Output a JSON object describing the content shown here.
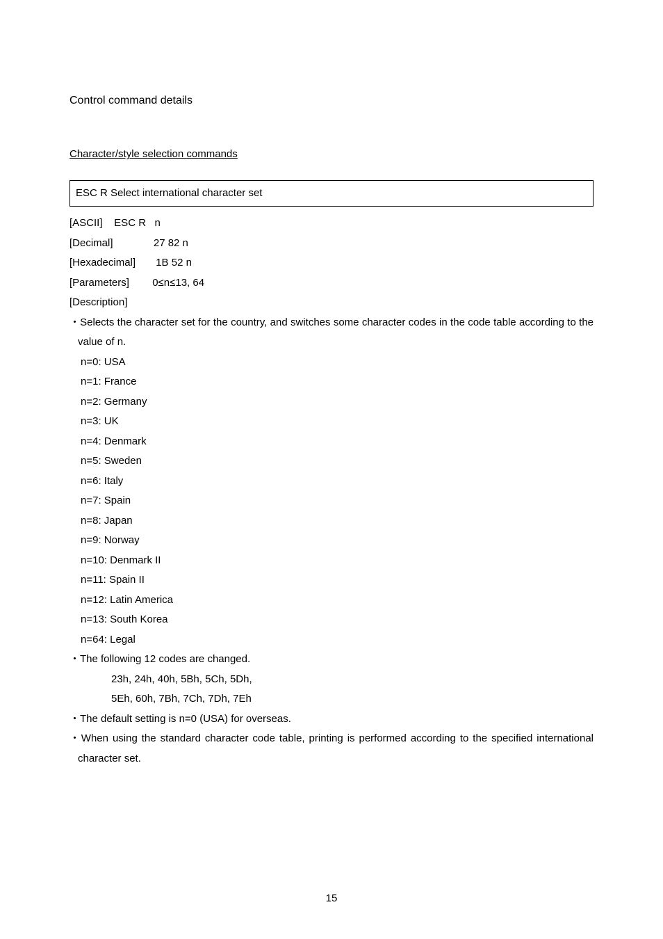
{
  "heading": "Control command details",
  "subheading": "Character/style selection commands",
  "command_box": "ESC R   Select international character set",
  "params": {
    "ascii": "[ASCII]    ESC R   n",
    "decimal": "[Decimal]              27 82 n",
    "hex": "[Hexadecimal]       1B 52 n",
    "paramsl": "[Parameters]        0≤n≤13, 64",
    "desc": "[Description]"
  },
  "bullet1": "・Selects the character set for the country, and switches some character codes in the code table according to the value of n.",
  "enum": {
    "e0": "n=0: USA",
    "e1": "n=1: France",
    "e2": "n=2: Germany",
    "e3": "n=3: UK",
    "e4": "n=4: Denmark",
    "e5": "n=5: Sweden",
    "e6": "n=6: Italy",
    "e7": "n=7: Spain",
    "e8": "n=8: Japan",
    "e9": "n=9: Norway",
    "e10": "n=10: Denmark II",
    "e11": "n=11: Spain II",
    "e12": "n=12: Latin America",
    "e13": "n=13: South Korea",
    "e64": "n=64: Legal"
  },
  "bullet2": "・The following 12 codes are changed.",
  "codes1": "23h, 24h, 40h, 5Bh, 5Ch, 5Dh,",
  "codes2": "5Eh, 60h, 7Bh, 7Ch, 7Dh, 7Eh",
  "bullet3": "・The default setting is n=0 (USA) for overseas.",
  "bullet4": "・When using the standard character code table, printing is performed according to the specified international character set.",
  "page_number": "15"
}
